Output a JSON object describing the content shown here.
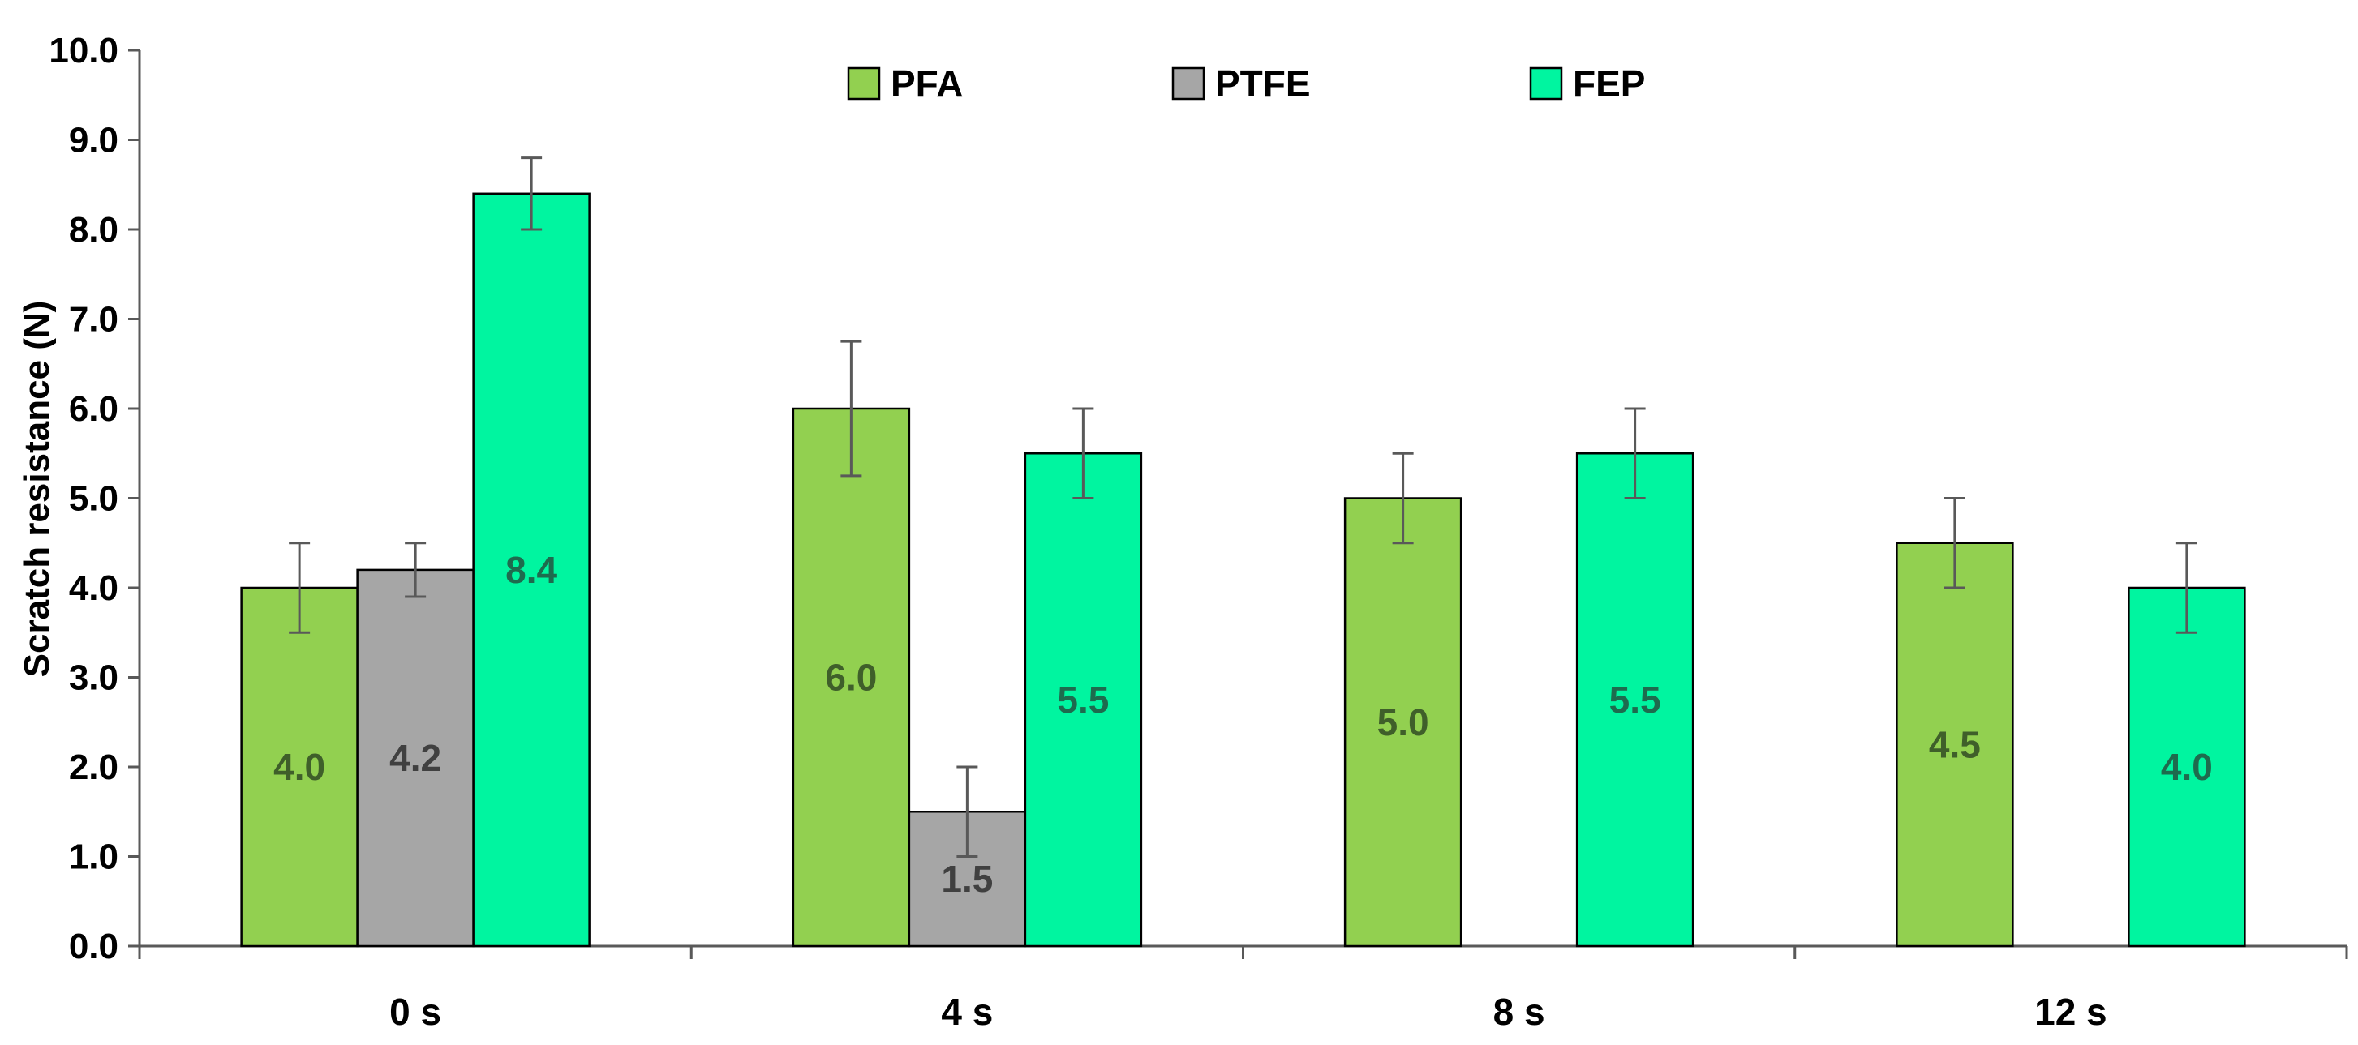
{
  "chart_data": {
    "type": "bar",
    "title": "",
    "xlabel": "",
    "ylabel": "Scratch resistance (N)",
    "ylim": [
      0,
      10
    ],
    "ytick_step": 1,
    "ytick_format": "0.0",
    "grid": false,
    "legend_position": "top-center",
    "categories": [
      "0 s",
      "4 s",
      "8 s",
      "12 s"
    ],
    "series": [
      {
        "name": "PFA",
        "color": "#92D050",
        "label_color": "#3F5F2A",
        "values": [
          4.0,
          6.0,
          5.0,
          4.5
        ],
        "errors": [
          0.5,
          0.75,
          0.5,
          0.5
        ],
        "labels": [
          "4.0",
          "6.0",
          "5.0",
          "4.5"
        ]
      },
      {
        "name": "PTFE",
        "color": "#A6A6A6",
        "label_color": "#404040",
        "values": [
          4.2,
          1.5,
          null,
          null
        ],
        "errors": [
          0.3,
          0.5,
          null,
          null
        ],
        "labels": [
          "4.2",
          "1.5",
          "",
          ""
        ]
      },
      {
        "name": "FEP",
        "color": "#00F5A0",
        "label_color": "#1E6B4E",
        "values": [
          8.4,
          5.5,
          5.5,
          4.0
        ],
        "errors": [
          0.4,
          0.5,
          0.5,
          0.5
        ],
        "labels": [
          "8.4",
          "5.5",
          "5.5",
          "4.0"
        ]
      }
    ]
  }
}
